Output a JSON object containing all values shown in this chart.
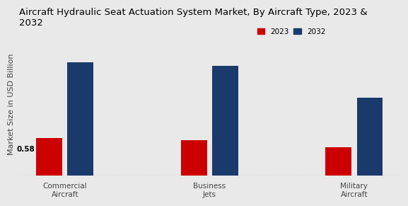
{
  "title": "Aircraft Hydraulic Seat Actuation System Market, By Aircraft Type, 2023 &\n2032",
  "ylabel": "Market Size in USD Billion",
  "categories": [
    "Commercial\nAircraft",
    "Business\nJets",
    "Military\nAircraft"
  ],
  "values_2023": [
    0.58,
    0.55,
    0.44
  ],
  "values_2032": [
    1.75,
    1.7,
    1.2
  ],
  "bar_color_2023": "#cc0000",
  "bar_color_2032": "#1a3a6b",
  "annotation_text": "0.58",
  "background_color": "#e9e9e9",
  "legend_labels": [
    "2023",
    "2032"
  ],
  "bar_width": 0.18,
  "ylim": [
    0,
    2.2
  ],
  "title_fontsize": 9.5,
  "axis_fontsize": 8,
  "tick_fontsize": 7.5
}
